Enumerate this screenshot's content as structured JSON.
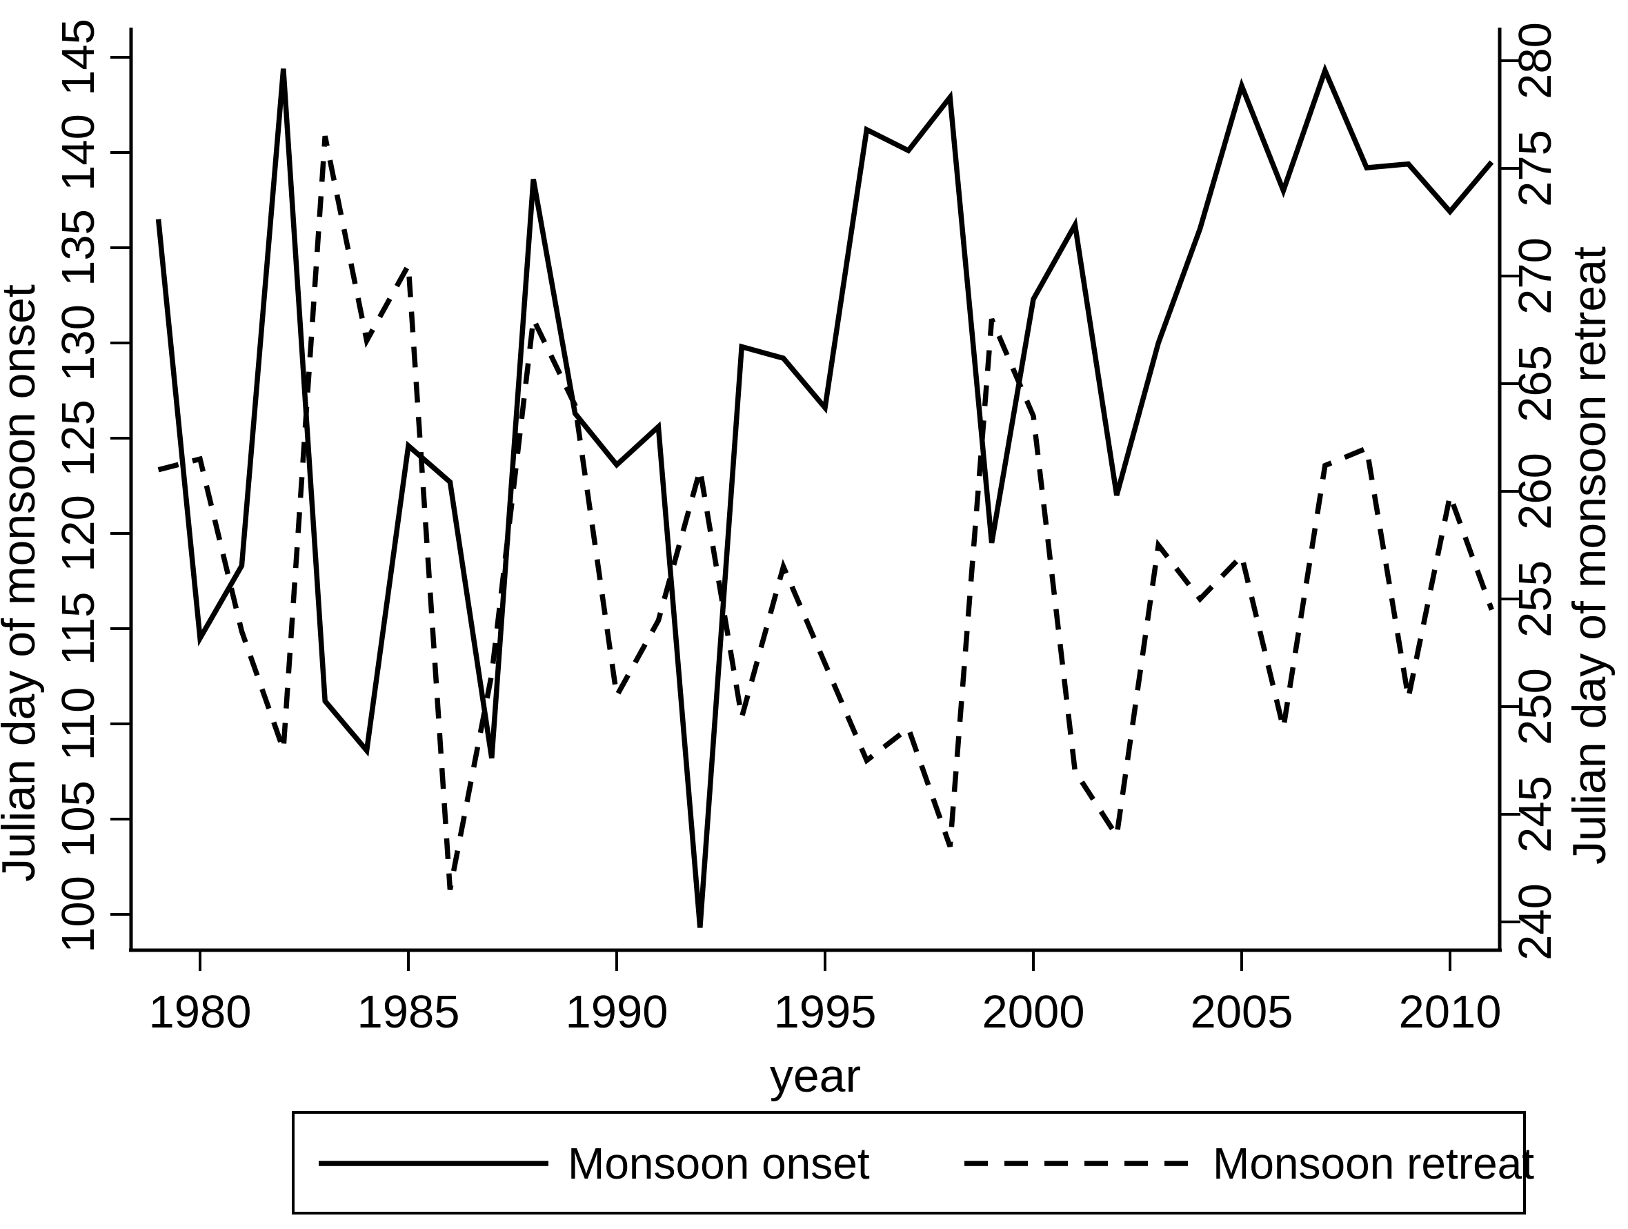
{
  "chart_data": {
    "type": "line",
    "title": "",
    "background_color": "#ffffff",
    "line_color": "#000000",
    "x": [
      1979,
      1980,
      1981,
      1982,
      1983,
      1984,
      1985,
      1986,
      1987,
      1988,
      1989,
      1990,
      1991,
      1992,
      1993,
      1994,
      1995,
      1996,
      1997,
      1998,
      1999,
      2000,
      2001,
      2002,
      2003,
      2004,
      2005,
      2006,
      2007,
      2008,
      2009,
      2010,
      2011
    ],
    "series": [
      {
        "name": "Monsoon onset",
        "axis": "left",
        "style": "solid",
        "values": [
          136.5,
          114.5,
          118.3,
          144.4,
          111.2,
          108.6,
          124.6,
          122.7,
          108.2,
          138.6,
          126.3,
          123.6,
          125.6,
          99.3,
          129.8,
          129.2,
          126.6,
          141.2,
          140.1,
          142.9,
          119.5,
          132.3,
          136.2,
          122.0,
          130.0,
          136.0,
          143.5,
          138.0,
          144.3,
          139.2,
          139.4,
          136.9,
          139.5
        ]
      },
      {
        "name": "Monsoon retreat",
        "axis": "right",
        "style": "dashed",
        "values": [
          261.0,
          261.5,
          253.5,
          248.0,
          276.5,
          267.0,
          270.5,
          241.5,
          251.5,
          268.0,
          264.0,
          250.5,
          254.0,
          261.0,
          249.5,
          256.5,
          252.0,
          247.5,
          249.0,
          243.5,
          268.0,
          263.5,
          247.0,
          244.0,
          257.5,
          255.0,
          257.0,
          249.0,
          261.2,
          262.0,
          250.4,
          259.8,
          254.5
        ]
      }
    ],
    "x_axis": {
      "label": "year",
      "ticks": [
        1980,
        1985,
        1990,
        1995,
        2000,
        2005,
        2010
      ],
      "range": [
        1979,
        2011
      ]
    },
    "y_left": {
      "label": "Julian day of monsoon onset",
      "ticks": [
        100,
        105,
        110,
        115,
        120,
        125,
        130,
        135,
        140,
        145
      ],
      "range": [
        98,
        146.5
      ]
    },
    "y_right": {
      "label": "Julian day of monsoon retreat",
      "ticks": [
        240,
        245,
        250,
        255,
        260,
        265,
        270,
        275,
        280
      ],
      "range": [
        239,
        281
      ]
    },
    "legend": {
      "entries": [
        {
          "label": "Monsoon onset",
          "style": "solid"
        },
        {
          "label": "Monsoon retreat",
          "style": "dashed"
        }
      ]
    }
  }
}
